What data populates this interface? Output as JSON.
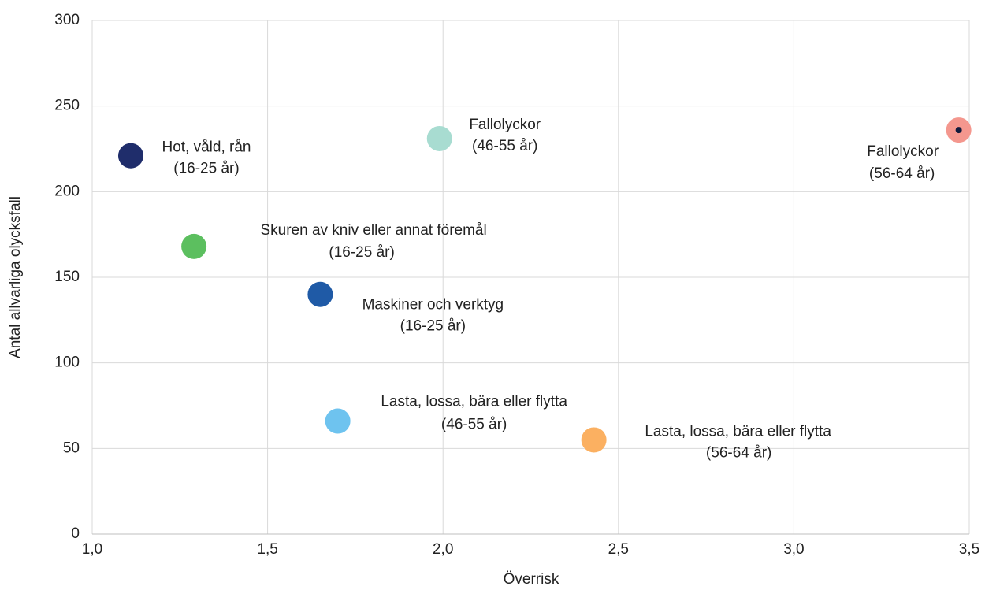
{
  "chart_data": {
    "type": "scatter",
    "xlabel": "Överrisk",
    "ylabel": "Antal allvarliga olycksfall",
    "xlim": [
      1.0,
      3.5
    ],
    "xticks": [
      {
        "value": 1.0,
        "label": "1,0"
      },
      {
        "value": 1.5,
        "label": "1,5"
      },
      {
        "value": 2.0,
        "label": "2,0"
      },
      {
        "value": 2.5,
        "label": "2,5"
      },
      {
        "value": 3.0,
        "label": "3,0"
      },
      {
        "value": 3.5,
        "label": "3,5"
      }
    ],
    "ylim": [
      0,
      300
    ],
    "yticks": [
      0,
      50,
      100,
      150,
      200,
      250,
      300
    ],
    "grid": true,
    "points": [
      {
        "label": [
          "Hot, våld, rån",
          "(16-25 år)"
        ],
        "x": 1.11,
        "y": 221,
        "color": "#1f2d6b"
      },
      {
        "label": [
          "Fallolyckor",
          "(46-55 år)"
        ],
        "x": 1.99,
        "y": 231,
        "color": "#a8dcd1"
      },
      {
        "label": [
          "Fallolyckor",
          "(56-64 år)"
        ],
        "x": 3.47,
        "y": 236,
        "color": "#f4978e",
        "center_color": "#101a3c"
      },
      {
        "label": [
          "Skuren av kniv eller annat föremål",
          "(16-25 år)"
        ],
        "x": 1.29,
        "y": 168,
        "color": "#5cbf5f"
      },
      {
        "label": [
          "Maskiner och verktyg",
          "(16-25 år)"
        ],
        "x": 1.65,
        "y": 140,
        "color": "#1f5aa6"
      },
      {
        "label": [
          "Lasta, lossa, bära eller flytta",
          "(46-55 år)"
        ],
        "x": 1.7,
        "y": 66,
        "color": "#6ec3ef"
      },
      {
        "label": [
          "Lasta, lossa, bära eller flytta",
          "(56-64 år)"
        ],
        "x": 2.43,
        "y": 55,
        "color": "#fbb061"
      }
    ]
  }
}
